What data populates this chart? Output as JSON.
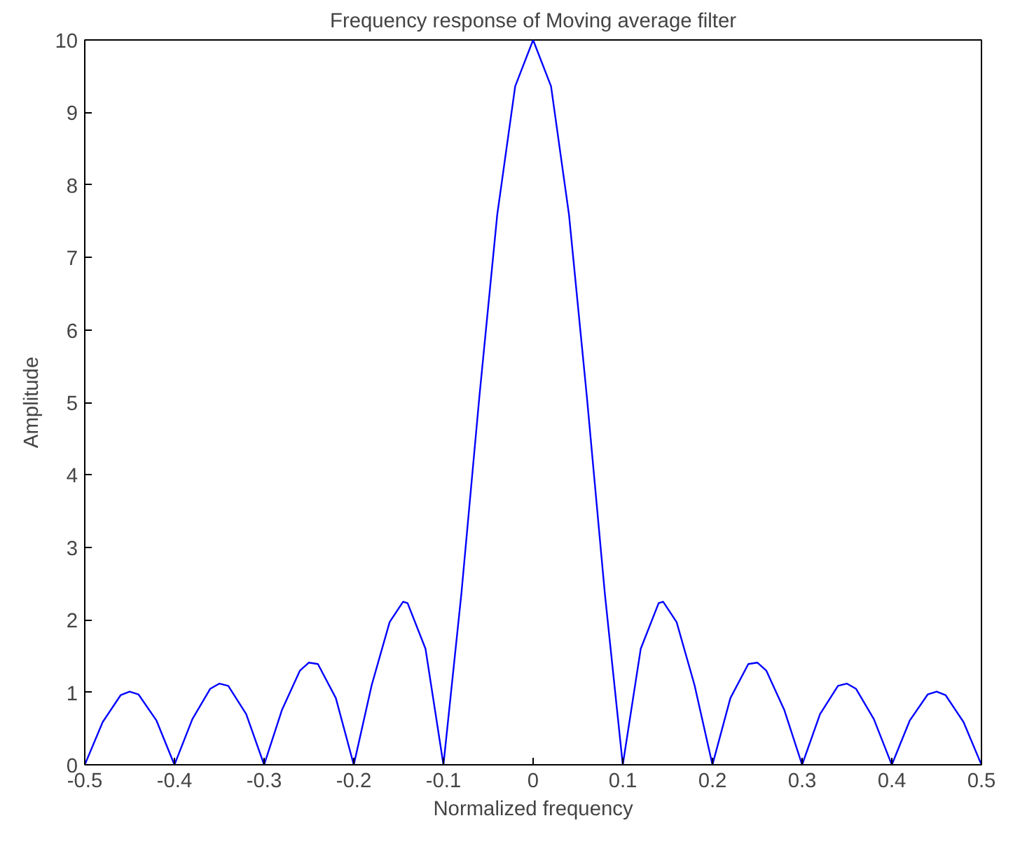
{
  "chart_data": {
    "type": "line",
    "title": "Frequency response of Moving average filter",
    "xlabel": "Normalized frequency",
    "ylabel": "Amplitude",
    "x": [
      -0.5,
      -0.48,
      -0.46,
      -0.45,
      -0.44,
      -0.42,
      -0.4,
      -0.38,
      -0.36,
      -0.35,
      -0.34,
      -0.32,
      -0.3,
      -0.28,
      -0.26,
      -0.25,
      -0.24,
      -0.22,
      -0.2,
      -0.18,
      -0.16,
      -0.145,
      -0.14,
      -0.12,
      -0.1,
      -0.08,
      -0.06,
      -0.04,
      -0.02,
      0,
      0.02,
      0.04,
      0.06,
      0.08,
      0.1,
      0.12,
      0.14,
      0.145,
      0.16,
      0.18,
      0.2,
      0.22,
      0.24,
      0.25,
      0.26,
      0.28,
      0.3,
      0.32,
      0.34,
      0.35,
      0.36,
      0.38,
      0.4,
      0.42,
      0.44,
      0.45,
      0.46,
      0.48,
      0.5
    ],
    "series": [
      {
        "color": "#0000ff",
        "values": [
          0,
          0.59,
          0.96,
          1.01,
          0.97,
          0.61,
          0,
          0.63,
          1.05,
          1.12,
          1.09,
          0.7,
          0,
          0.76,
          1.3,
          1.41,
          1.39,
          0.92,
          0,
          1.1,
          1.97,
          2.25,
          2.23,
          1.6,
          0,
          2.36,
          5.07,
          7.59,
          9.36,
          10,
          9.36,
          7.59,
          5.07,
          2.36,
          0,
          1.6,
          2.23,
          2.25,
          1.97,
          1.1,
          0,
          0.92,
          1.39,
          1.41,
          1.3,
          0.76,
          0,
          0.7,
          1.09,
          1.12,
          1.05,
          0.63,
          0,
          0.61,
          0.97,
          1.01,
          0.96,
          0.59,
          0
        ]
      }
    ],
    "xlim": [
      -0.5,
      0.5
    ],
    "xticks": [
      -0.5,
      -0.4,
      -0.3,
      -0.2,
      -0.1,
      0,
      0.1,
      0.2,
      0.3,
      0.4,
      0.5
    ],
    "ylim": [
      0,
      10
    ],
    "yticks": [
      0,
      1,
      2,
      3,
      4,
      5,
      6,
      7,
      8,
      9,
      10
    ],
    "grid": false,
    "marker": "none",
    "line_style": "solid"
  }
}
